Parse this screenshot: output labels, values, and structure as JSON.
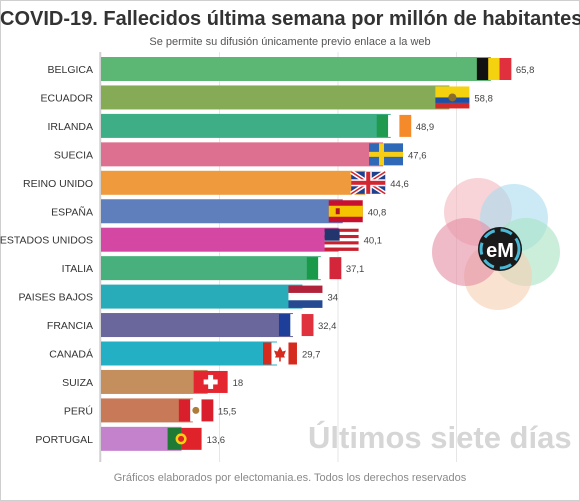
{
  "title": "COVID-19. Fallecidos última semana por millón de habitantes",
  "subtitle": "Se permite su difusión únicamente previo enlace a la web",
  "footer": "Gráficos elaborados por electomania.es. Todos los derechos reservados",
  "watermark": "Últimos siete días",
  "logo_text": "eM",
  "chart_data": {
    "type": "bar",
    "orientation": "horizontal",
    "categories": [
      "BELGICA",
      "ECUADOR",
      "IRLANDA",
      "SUECIA",
      "REINO UNIDO",
      "ESPAÑA",
      "ESTADOS UNIDOS",
      "ITALIA",
      "PAISES BAJOS",
      "FRANCIA",
      "CANADÁ",
      "SUIZA",
      "PERÚ",
      "PORTUGAL"
    ],
    "values": [
      65.8,
      58.8,
      48.9,
      47.6,
      44.6,
      40.8,
      40.1,
      37.1,
      34,
      32.4,
      29.7,
      18,
      15.5,
      13.6
    ],
    "value_labels": [
      "65,8",
      "58,8",
      "48,9",
      "47,6",
      "44,6",
      "40,8",
      "40,1",
      "37,1",
      "34",
      "32,4",
      "29,7",
      "18",
      "15,5",
      "13,6"
    ],
    "colors": [
      "#5cb774",
      "#86ab56",
      "#3dae86",
      "#dd7090",
      "#ef9a3c",
      "#5f7fbc",
      "#d448a4",
      "#48b07c",
      "#29acb9",
      "#69679c",
      "#23b0c5",
      "#c58f5d",
      "#c87a58",
      "#c582cc"
    ],
    "flags": [
      "belgium",
      "ecuador",
      "ireland",
      "sweden",
      "united-kingdom",
      "spain",
      "united-states",
      "italy",
      "netherlands",
      "france",
      "canada",
      "switzerland",
      "peru",
      "portugal"
    ],
    "xlim": [
      0,
      70
    ],
    "grid": true,
    "xticks_visible": false
  }
}
